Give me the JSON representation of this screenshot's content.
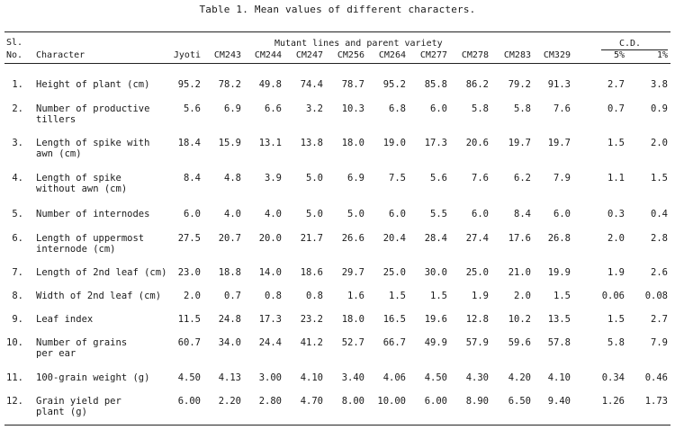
{
  "caption": "Table 1.  Mean values of different characters.",
  "headers": {
    "sl_line1": "Sl.",
    "sl_line2": "No.",
    "character": "Character",
    "group": "Mutant lines and parent variety",
    "cd_group": "C.D.",
    "varieties": [
      "Jyoti",
      "CM243",
      "CM244",
      "CM247",
      "CM256",
      "CM264",
      "CM277",
      "CM278",
      "CM283",
      "CM329"
    ],
    "cd_levels": [
      "5%",
      "1%"
    ]
  },
  "rows": [
    {
      "sl": "1.",
      "char": [
        "Height of plant (cm)"
      ],
      "vals": [
        "95.2",
        "78.2",
        "49.8",
        "74.4",
        "78.7",
        "95.2",
        "85.8",
        "86.2",
        "79.2",
        "91.3"
      ],
      "cd": [
        "2.7",
        "3.8"
      ]
    },
    {
      "sl": "2.",
      "char": [
        "Number of productive",
        "tillers"
      ],
      "vals": [
        "5.6",
        "6.9",
        "6.6",
        "3.2",
        "10.3",
        "6.8",
        "6.0",
        "5.8",
        "5.8",
        "7.6"
      ],
      "cd": [
        "0.7",
        "0.9"
      ]
    },
    {
      "sl": "3.",
      "char": [
        "Length of spike with",
        "awn (cm)"
      ],
      "vals": [
        "18.4",
        "15.9",
        "13.1",
        "13.8",
        "18.0",
        "19.0",
        "17.3",
        "20.6",
        "19.7",
        "19.7"
      ],
      "cd": [
        "1.5",
        "2.0"
      ]
    },
    {
      "sl": "4.",
      "char": [
        "Length of spike",
        "without awn (cm)"
      ],
      "vals": [
        "8.4",
        "4.8",
        "3.9",
        "5.0",
        "6.9",
        "7.5",
        "5.6",
        "7.6",
        "6.2",
        "7.9"
      ],
      "cd": [
        "1.1",
        "1.5"
      ]
    },
    {
      "sl": "5.",
      "char": [
        "Number of internodes"
      ],
      "vals": [
        "6.0",
        "4.0",
        "4.0",
        "5.0",
        "5.0",
        "6.0",
        "5.5",
        "6.0",
        "8.4",
        "6.0"
      ],
      "cd": [
        "0.3",
        "0.4"
      ]
    },
    {
      "sl": "6.",
      "char": [
        "Length of uppermost",
        "internode (cm)"
      ],
      "vals": [
        "27.5",
        "20.7",
        "20.0",
        "21.7",
        "26.6",
        "20.4",
        "28.4",
        "27.4",
        "17.6",
        "26.8"
      ],
      "cd": [
        "2.0",
        "2.8"
      ]
    },
    {
      "sl": "7.",
      "char": [
        "Length of 2nd leaf (cm)"
      ],
      "vals": [
        "23.0",
        "18.8",
        "14.0",
        "18.6",
        "29.7",
        "25.0",
        "30.0",
        "25.0",
        "21.0",
        "19.9"
      ],
      "cd": [
        "1.9",
        "2.6"
      ]
    },
    {
      "sl": "8.",
      "char": [
        "Width of 2nd leaf (cm)"
      ],
      "vals": [
        "2.0",
        "0.7",
        "0.8",
        "0.8",
        "1.6",
        "1.5",
        "1.5",
        "1.9",
        "2.0",
        "1.5"
      ],
      "cd": [
        "0.06",
        "0.08"
      ]
    },
    {
      "sl": "9.",
      "char": [
        "Leaf index"
      ],
      "vals": [
        "11.5",
        "24.8",
        "17.3",
        "23.2",
        "18.0",
        "16.5",
        "19.6",
        "12.8",
        "10.2",
        "13.5"
      ],
      "cd": [
        "1.5",
        "2.7"
      ]
    },
    {
      "sl": "10.",
      "char": [
        "Number of grains",
        "per ear"
      ],
      "vals": [
        "60.7",
        "34.0",
        "24.4",
        "41.2",
        "52.7",
        "66.7",
        "49.9",
        "57.9",
        "59.6",
        "57.8"
      ],
      "cd": [
        "5.8",
        "7.9"
      ]
    },
    {
      "sl": "11.",
      "char": [
        "100-grain weight (g)"
      ],
      "vals": [
        "4.50",
        "4.13",
        "3.00",
        "4.10",
        "3.40",
        "4.06",
        "4.50",
        "4.30",
        "4.20",
        "4.10"
      ],
      "cd": [
        "0.34",
        "0.46"
      ]
    },
    {
      "sl": "12.",
      "char": [
        "Grain yield per",
        "plant (g)"
      ],
      "vals": [
        "6.00",
        "2.20",
        "2.80",
        "4.70",
        "8.00",
        "10.00",
        "6.00",
        "8.90",
        "6.50",
        "9.40"
      ],
      "cd": [
        "1.26",
        "1.73"
      ]
    }
  ]
}
